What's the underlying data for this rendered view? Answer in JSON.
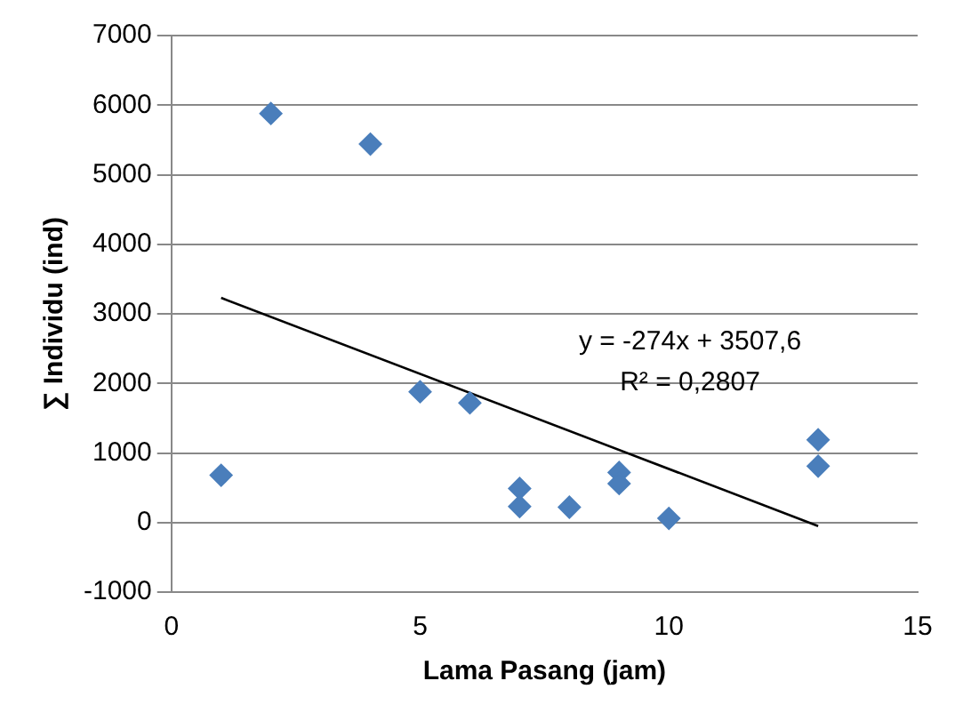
{
  "chart_data": {
    "type": "scatter",
    "xlabel": "Lama Pasang (jam)",
    "ylabel": "∑ Individu (ind)",
    "xlim": [
      0,
      15
    ],
    "xticks": [
      0,
      5,
      10,
      15
    ],
    "ylim": [
      -1000,
      7000
    ],
    "yticks": [
      -1000,
      0,
      1000,
      2000,
      3000,
      4000,
      5000,
      6000,
      7000
    ],
    "grid": "y",
    "legend": false,
    "marker": "diamond",
    "series": [
      {
        "type": "scatter",
        "color": "#4a7ebb",
        "x": [
          1,
          2,
          4,
          5,
          6,
          7,
          7,
          8,
          9,
          9,
          10,
          13,
          13
        ],
        "values": [
          680,
          5880,
          5440,
          1880,
          1720,
          490,
          230,
          220,
          720,
          560,
          60,
          1190,
          810
        ]
      },
      {
        "type": "line",
        "color": "#000000",
        "marker": "none",
        "x": [
          1,
          13
        ],
        "values": [
          3230,
          -50
        ]
      }
    ],
    "annotations": [
      "y = -274x + 3507,6",
      "R² = 0,2807"
    ]
  }
}
